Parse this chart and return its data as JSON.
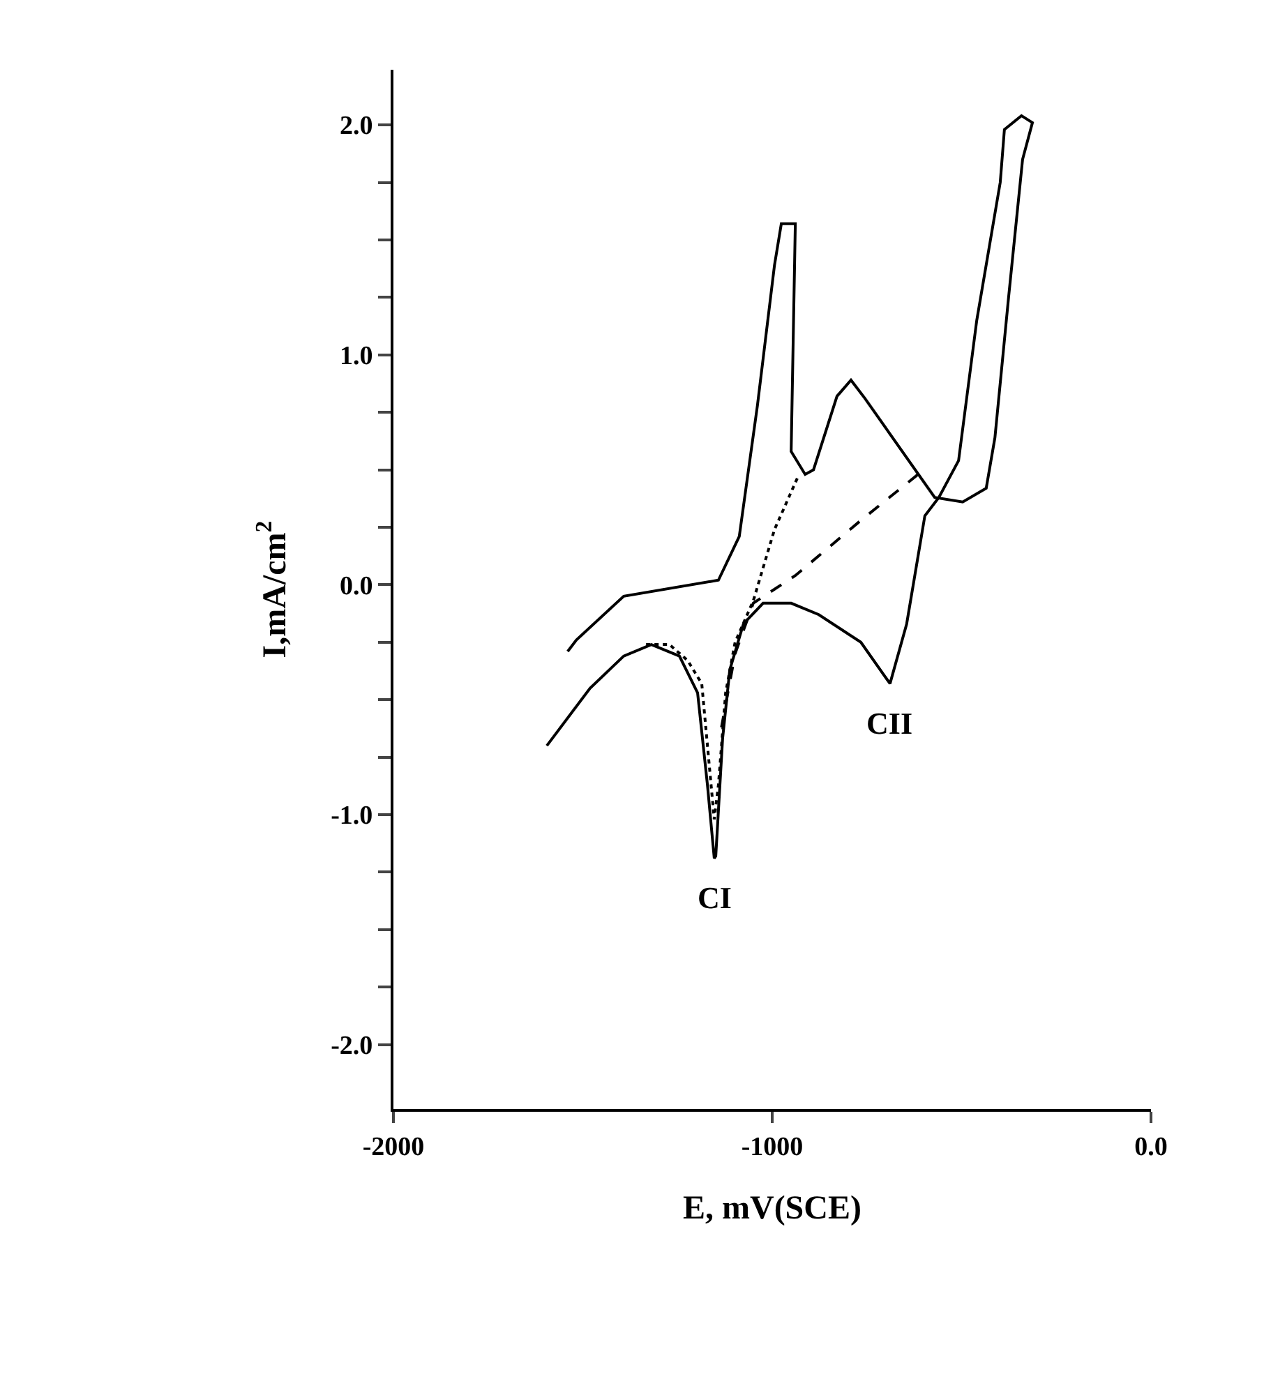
{
  "chart_data": {
    "type": "line",
    "xlabel": "E, mV(SCE)",
    "ylabel": "I,mA/cm$^{2}$",
    "xlim": [
      -2000,
      0
    ],
    "xticks": [
      -2000,
      -1000,
      {
        "value": 0,
        "label": "0.0"
      }
    ],
    "ylim": [
      -2.28,
      2.24
    ],
    "yticks": [
      {
        "value": -2,
        "label": "-2.0"
      },
      {
        "value": -1.75,
        "label": null
      },
      {
        "value": -1.5,
        "label": null
      },
      {
        "value": -1.25,
        "label": null
      },
      {
        "value": -1,
        "label": "-1.0"
      },
      {
        "value": -0.75,
        "label": null
      },
      {
        "value": -0.5,
        "label": null
      },
      {
        "value": -0.25,
        "label": null
      },
      {
        "value": 0,
        "label": "0.0"
      },
      {
        "value": 0.25,
        "label": null
      },
      {
        "value": 0.5,
        "label": null
      },
      {
        "value": 0.75,
        "label": null
      },
      {
        "value": 1,
        "label": "1.0"
      },
      {
        "value": 1.25,
        "label": null
      },
      {
        "value": 1.5,
        "label": null
      },
      {
        "value": 1.75,
        "label": null
      },
      {
        "value": 2,
        "label": "2.0"
      }
    ],
    "marker": "none",
    "series": [
      {
        "color": "#000000",
        "line_style": "solid",
        "x": [
          -1595,
          -1481,
          -1392,
          -1319,
          -1245,
          -1197,
          -1171,
          -1153,
          -1149,
          -1131,
          -1112,
          -1076,
          -1024,
          -950,
          -877,
          -766,
          -689,
          -645,
          -597,
          -560,
          -508,
          -460,
          -398,
          -387,
          -342,
          -313,
          -339,
          -376,
          -412,
          -435,
          -497,
          -571,
          -755,
          -792,
          -829,
          -891,
          -913,
          -950,
          -939,
          -976,
          -994,
          -1039,
          -1087,
          -1142,
          -1392,
          -1517,
          -1540
        ],
        "values": [
          -0.7,
          -0.45,
          -0.31,
          -0.26,
          -0.31,
          -0.47,
          -0.87,
          -1.19,
          -1.18,
          -0.67,
          -0.37,
          -0.17,
          -0.08,
          -0.08,
          -0.13,
          -0.25,
          -0.43,
          -0.17,
          0.3,
          0.38,
          0.54,
          1.15,
          1.75,
          1.98,
          2.04,
          2.01,
          1.85,
          1.25,
          0.64,
          0.42,
          0.36,
          0.38,
          0.81,
          0.89,
          0.82,
          0.5,
          0.48,
          0.58,
          1.57,
          1.57,
          1.39,
          0.78,
          0.21,
          0.02,
          -0.05,
          -0.24,
          -0.29
        ]
      },
      {
        "color": "#000000",
        "line_style": "dotted",
        "x": [
          -1333,
          -1271,
          -1223,
          -1186,
          -1153,
          -1142,
          -1123,
          -1098,
          -1050,
          -994,
          -932
        ],
        "values": [
          -0.26,
          -0.26,
          -0.33,
          -0.43,
          -1.02,
          -0.87,
          -0.47,
          -0.25,
          -0.07,
          0.24,
          0.47
        ]
      },
      {
        "color": "#000000",
        "line_style": "dashed",
        "x": [
          -615,
          -766,
          -939,
          -1050,
          -1098,
          -1134
        ],
        "values": [
          0.48,
          0.28,
          0.04,
          -0.08,
          -0.3,
          -0.62
        ]
      }
    ],
    "annotations": [
      {
        "text": "CI",
        "x": -1153,
        "y": -1.19
      },
      {
        "text": "CII",
        "x": -689,
        "y": -0.43
      }
    ]
  }
}
